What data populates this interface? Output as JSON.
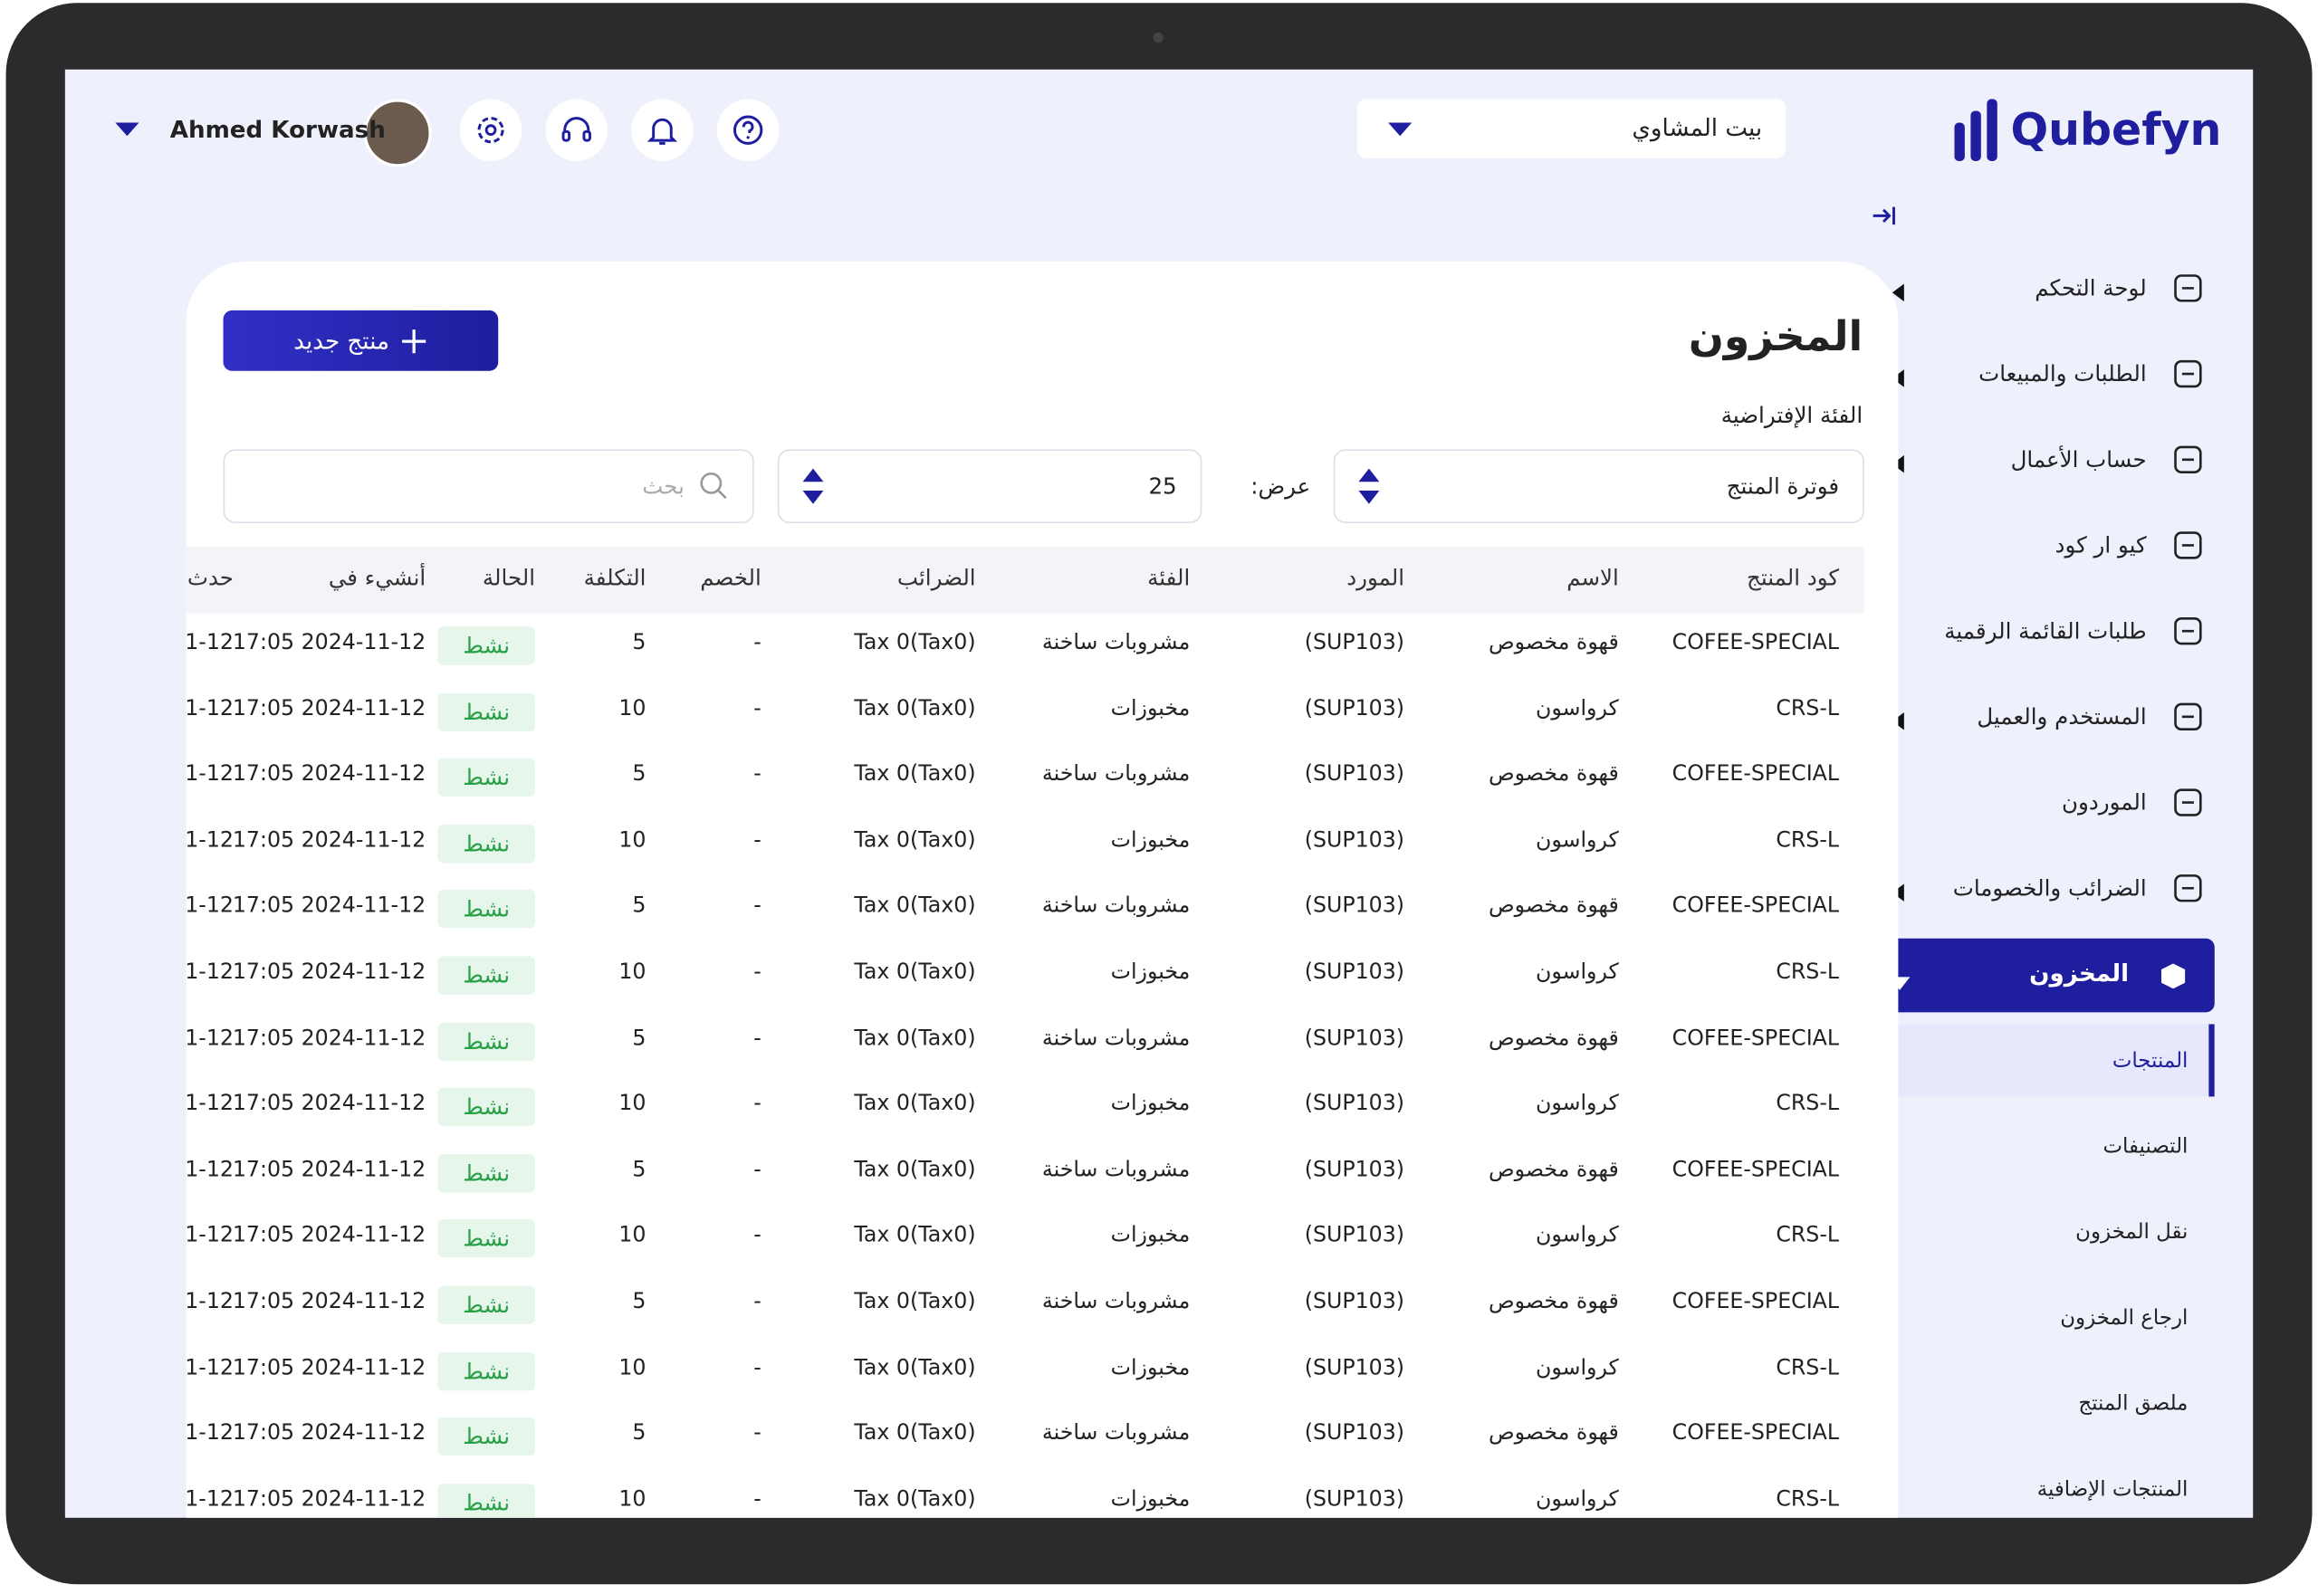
{
  "header": {
    "brand": "Qubefyn",
    "store": "بيت المشاوي",
    "user": "Ahmed Korwash"
  },
  "sidebar": {
    "items": [
      {
        "label": "لوحة التحكم",
        "arrow": true
      },
      {
        "label": "الطلبات والمبيعات",
        "arrow": true
      },
      {
        "label": "حساب الأعمال",
        "arrow": true
      },
      {
        "label": "كيو ار كود",
        "arrow": false
      },
      {
        "label": "طلبات القائمة الرقمية",
        "arrow": false
      },
      {
        "label": "المستخدم والعميل",
        "arrow": true
      },
      {
        "label": "الموردون",
        "arrow": false
      },
      {
        "label": "الضرائب والخصومات",
        "arrow": true
      }
    ],
    "active": "المخزون",
    "subitems": [
      "المنتجات",
      "التصنيفات",
      "نقل المخزون",
      "ارجاع المخزون",
      "ملصق المنتج",
      "المنتجات الإضافية"
    ]
  },
  "page": {
    "title": "المخزون",
    "new_button": "منتج جديد",
    "category_label": "الفئة الإفتراضية",
    "billing_select": "فوترة المنتج",
    "show_label": "عرض:",
    "page_size": "25",
    "search_placeholder": "بحث"
  },
  "table": {
    "columns": [
      "كود المنتج",
      "الاسم",
      "المورد",
      "الفئة",
      "الضرائب",
      "الخصم",
      "التكلفة",
      "الحالة",
      "أنشيء في",
      "حدث"
    ],
    "rows": [
      [
        "COFEE-SPECIAL",
        "قهوة مخصوص",
        "(SUP103)",
        "مشروبات ساخنة",
        "Tax 0(Tax0)",
        "-",
        "5",
        "نشط",
        "17:05 2024-11-12",
        "1-12"
      ],
      [
        "CRS-L",
        "كرواسون",
        "(SUP103)",
        "مخبوزات",
        "Tax 0(Tax0)",
        "-",
        "10",
        "نشط",
        "17:05 2024-11-12",
        "1-12"
      ],
      [
        "COFEE-SPECIAL",
        "قهوة مخصوص",
        "(SUP103)",
        "مشروبات ساخنة",
        "Tax 0(Tax0)",
        "-",
        "5",
        "نشط",
        "17:05 2024-11-12",
        "1-12"
      ],
      [
        "CRS-L",
        "كرواسون",
        "(SUP103)",
        "مخبوزات",
        "Tax 0(Tax0)",
        "-",
        "10",
        "نشط",
        "17:05 2024-11-12",
        "1-12"
      ],
      [
        "COFEE-SPECIAL",
        "قهوة مخصوص",
        "(SUP103)",
        "مشروبات ساخنة",
        "Tax 0(Tax0)",
        "-",
        "5",
        "نشط",
        "17:05 2024-11-12",
        "1-12"
      ],
      [
        "CRS-L",
        "كرواسون",
        "(SUP103)",
        "مخبوزات",
        "Tax 0(Tax0)",
        "-",
        "10",
        "نشط",
        "17:05 2024-11-12",
        "1-12"
      ],
      [
        "COFEE-SPECIAL",
        "قهوة مخصوص",
        "(SUP103)",
        "مشروبات ساخنة",
        "Tax 0(Tax0)",
        "-",
        "5",
        "نشط",
        "17:05 2024-11-12",
        "1-12"
      ],
      [
        "CRS-L",
        "كرواسون",
        "(SUP103)",
        "مخبوزات",
        "Tax 0(Tax0)",
        "-",
        "10",
        "نشط",
        "17:05 2024-11-12",
        "1-12"
      ],
      [
        "COFEE-SPECIAL",
        "قهوة مخصوص",
        "(SUP103)",
        "مشروبات ساخنة",
        "Tax 0(Tax0)",
        "-",
        "5",
        "نشط",
        "17:05 2024-11-12",
        "1-12"
      ],
      [
        "CRS-L",
        "كرواسون",
        "(SUP103)",
        "مخبوزات",
        "Tax 0(Tax0)",
        "-",
        "10",
        "نشط",
        "17:05 2024-11-12",
        "1-12"
      ],
      [
        "COFEE-SPECIAL",
        "قهوة مخصوص",
        "(SUP103)",
        "مشروبات ساخنة",
        "Tax 0(Tax0)",
        "-",
        "5",
        "نشط",
        "17:05 2024-11-12",
        "1-12"
      ],
      [
        "CRS-L",
        "كرواسون",
        "(SUP103)",
        "مخبوزات",
        "Tax 0(Tax0)",
        "-",
        "10",
        "نشط",
        "17:05 2024-11-12",
        "1-12"
      ],
      [
        "COFEE-SPECIAL",
        "قهوة مخصوص",
        "(SUP103)",
        "مشروبات ساخنة",
        "Tax 0(Tax0)",
        "-",
        "5",
        "نشط",
        "17:05 2024-11-12",
        "1-12"
      ],
      [
        "CRS-L",
        "كرواسون",
        "(SUP103)",
        "مخبوزات",
        "Tax 0(Tax0)",
        "-",
        "10",
        "نشط",
        "17:05 2024-11-12",
        "1-12"
      ]
    ]
  }
}
